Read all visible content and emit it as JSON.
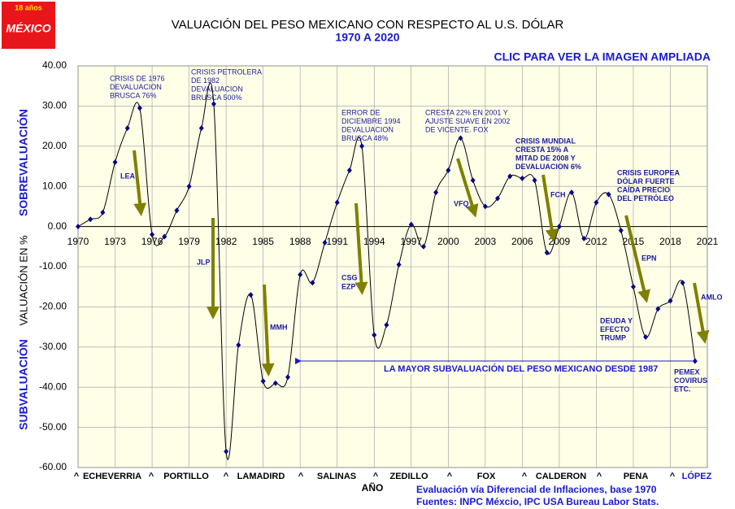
{
  "logo_text": "18 años",
  "logo_name": "MÉXICO",
  "link": "CLIC PARA VER LA IMAGEN AMPLIADA",
  "chart_data": {
    "type": "line",
    "title": "VALUACIÓN DEL PESO MEXICANO CON RESPECTO AL U.S. DÓLAR",
    "subtitle": "1970 A 2020",
    "y_label_top": "SOBREVALUACIÓN",
    "y_label": "VALUACIÓN EN %",
    "y_label_bottom": "SUBVALUACIÓN",
    "x_label": "AÑO",
    "footnotes": [
      "Evaluación vía Diferencial de Inflaciones, base 1970",
      "Fuentes: INPC Méxcio,  IPC USA Bureau Labor Stats."
    ],
    "color": "#000000",
    "marker_color": "#00008b",
    "background": "#ffffe8",
    "grid": true,
    "x": [
      1970,
      1971,
      1972,
      1973,
      1974,
      1975,
      1976,
      1977,
      1978,
      1979,
      1980,
      1981,
      1982,
      1983,
      1984,
      1985,
      1986,
      1987,
      1988,
      1989,
      1990,
      1991,
      1992,
      1993,
      1994,
      1995,
      1996,
      1997,
      1998,
      1999,
      2000,
      2001,
      2002,
      2003,
      2004,
      2005,
      2006,
      2007,
      2008,
      2009,
      2010,
      2011,
      2012,
      2013,
      2014,
      2015,
      2016,
      2017,
      2018,
      2019,
      2020
    ],
    "values": [
      0,
      1.8,
      3.5,
      16,
      24.5,
      29.5,
      -2,
      -2.5,
      4,
      10,
      24.5,
      30.5,
      -56,
      -29.5,
      -17,
      -38.5,
      -39,
      -37.5,
      -12,
      -14,
      -4,
      6,
      14,
      20,
      -27,
      -24.5,
      -9.5,
      0.5,
      -5,
      8.5,
      14,
      22,
      11.5,
      5,
      7,
      12.5,
      12,
      11.5,
      -6.5,
      0,
      8.5,
      -3,
      6,
      8,
      -1,
      -15,
      -27.5,
      -20.5,
      -18.5,
      -14,
      -33.5
    ],
    "xlim": [
      1970,
      2021
    ],
    "xticks": [
      1970,
      1973,
      1976,
      1979,
      1982,
      1985,
      1988,
      1991,
      1994,
      1997,
      2000,
      2003,
      2006,
      2009,
      2012,
      2015,
      2018,
      2021
    ],
    "ylim": [
      -60,
      40
    ],
    "yticks": [
      {
        "value": 40,
        "label": "40.00"
      },
      {
        "value": 30,
        "label": "30.00"
      },
      {
        "value": 20,
        "label": "20.00"
      },
      {
        "value": 10,
        "label": "10.00"
      },
      {
        "value": 0,
        "label": "0.00"
      },
      {
        "value": -10,
        "label": "-10.00"
      },
      {
        "value": -20,
        "label": "-20.00"
      },
      {
        "value": -30,
        "label": "-30.00"
      },
      {
        "value": -40,
        "label": "-40.00"
      },
      {
        "value": -50,
        "label": "-50.00"
      },
      {
        "value": -60,
        "label": "-60.00"
      }
    ],
    "annotations": [
      [
        "CRISIS DE 1976",
        "DEVALUACION",
        "BRUSCA 76%"
      ],
      [
        "CRISIS PETROLERA",
        "DE 1982",
        "DEVALUACION",
        "BRUSCA 500%"
      ],
      [
        "ERROR DE",
        "DICIEMBRE 1994",
        "DEVALUACION",
        "BRUSCA  48%"
      ],
      [
        "CRESTA 22% EN 2001 Y",
        "AJUSTE SUAVE EN 2002",
        "DE VICENTE. FOX"
      ],
      [
        "CRISIS MUNDIAL",
        "CRESTA 15%   A",
        "MITAD DE 2008  Y",
        "DEVALUACION 6%"
      ],
      [
        "CRISIS EUROPEA",
        "DÓLAR FUERTE",
        "CAÍDA PRECIO",
        "DEL PETRÓLEO"
      ],
      [
        "DEUDA Y",
        "EFECTO",
        "TRUMP"
      ],
      [
        "PEMEX",
        "COVIRUS",
        "ETC."
      ]
    ],
    "leaders": [
      "LEA",
      "JLP",
      "MMH",
      "CSG",
      "EZP",
      "VFQ",
      "FCH",
      "EPN",
      "AMLO"
    ],
    "low_note": "LA MAYOR SUBVALUACIÓN DEL PESO MEXICANO DESDE 1987",
    "period_marker": "^",
    "periods": [
      "ECHEVERRIA",
      "PORTILLO",
      "LAMADIRD",
      "SALINAS",
      "ZEDILLO",
      "FOX",
      "CALDERON",
      "PENA",
      "LÓPEZ"
    ]
  }
}
